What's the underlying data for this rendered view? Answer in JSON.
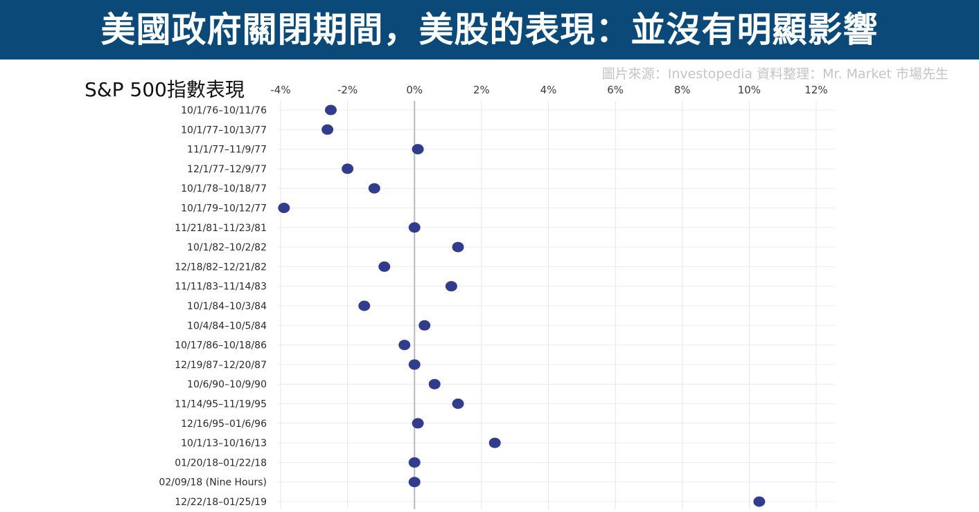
{
  "banner": {
    "title": "美國政府關閉期間，美股的表現：並沒有明顯影響",
    "background": "#0b4a78"
  },
  "source_note": "圖片來源：Investopedia  資料整理：Mr. Market 市場先生",
  "chart_data": {
    "type": "scatter",
    "title": "S&P 500指數表現",
    "x_ticks": [
      "-4%",
      "-2%",
      "0%",
      "2%",
      "4%",
      "6%",
      "8%",
      "10%",
      "12%"
    ],
    "xlim": [
      -4,
      12
    ],
    "marker_color": "#323c8c",
    "zero_line": true,
    "grid": true,
    "categories": [
      "10/1/76–10/11/76",
      "10/1/77–10/13/77",
      "11/1/77–11/9/77",
      "12/1/77–12/9/77",
      "10/1/78–10/18/77",
      "10/1/79–10/12/77",
      "11/21/81–11/23/81",
      "10/1/82–10/2/82",
      "12/18/82–12/21/82",
      "11/11/83–11/14/83",
      "10/1/84–10/3/84",
      "10/4/84–10/5/84",
      "10/17/86–10/18/86",
      "12/19/87–12/20/87",
      "10/6/90–10/9/90",
      "11/14/95–11/19/95",
      "12/16/95–01/6/96",
      "10/1/13–10/16/13",
      "01/20/18–01/22/18",
      "02/09/18 (Nine Hours)",
      "12/22/18–01/25/19"
    ],
    "values": [
      -2.5,
      -2.6,
      0.1,
      -2.0,
      -1.2,
      -3.9,
      0.0,
      1.3,
      -0.9,
      1.1,
      -1.5,
      0.3,
      -0.3,
      0.0,
      0.6,
      1.3,
      0.1,
      2.4,
      0.0,
      0.0,
      10.3
    ]
  }
}
